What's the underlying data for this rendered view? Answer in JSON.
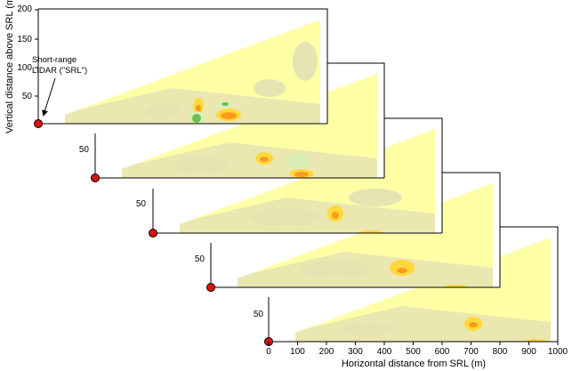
{
  "figure": {
    "y_axis_label": "Vertical distance above SRL (m)",
    "x_axis_label": "Horizontal distance from SRL (m)",
    "annotation_line1": "Short-range",
    "annotation_line2": "LIDAR (\"SRL\")",
    "panel_count": 5,
    "colors": {
      "background_wedge": "#ffffa6",
      "low_return": "#e6e4b2",
      "weak": "#d9efb8",
      "moderate": "#ffd83a",
      "strong": "#ff9a1c",
      "peak": "#ee3a1a",
      "green_feature": "#6bbf4a",
      "lidar_marker": "#dd1111"
    }
  },
  "top_panel": {
    "y_ticks": [
      "200",
      "150",
      "100",
      "50"
    ]
  },
  "stacked_panel_tick": "50",
  "bottom_panel": {
    "x_ticks": [
      "0",
      "100",
      "200",
      "300",
      "400",
      "500",
      "600",
      "700",
      "800",
      "900",
      "1000"
    ]
  }
}
